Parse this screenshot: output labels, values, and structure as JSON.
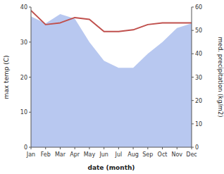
{
  "chart_data": {
    "type": "line",
    "categories": [
      "Jan",
      "Feb",
      "Mar",
      "Apr",
      "May",
      "Jun",
      "Jul",
      "Aug",
      "Sep",
      "Oct",
      "Nov",
      "Dec"
    ],
    "xlabel": "date (month)",
    "ylabel": "max temp (C)",
    "y2label": "med. precipitation (kg/m2)",
    "series": [
      {
        "type": "area",
        "axis": "y2",
        "color": "#b8c8f0",
        "values": [
          56,
          53,
          57,
          55,
          45,
          37,
          34,
          34,
          40,
          45,
          51,
          53
        ]
      },
      {
        "type": "line",
        "color": "#c0504d",
        "values": [
          39,
          35,
          35.5,
          37,
          36.5,
          33,
          33,
          33.5,
          35,
          35.5,
          35.5,
          35.5
        ]
      }
    ],
    "ylim": [
      0,
      40
    ],
    "yticks": [
      0,
      10,
      20,
      30,
      40
    ],
    "y2lim": [
      0,
      60
    ],
    "y2ticks": [
      0,
      10,
      20,
      30,
      40,
      50,
      60
    ],
    "grid": false
  }
}
